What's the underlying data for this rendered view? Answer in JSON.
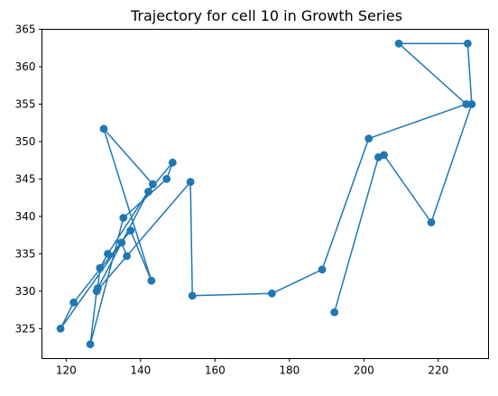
{
  "chart_data": {
    "type": "line",
    "title": "Trajectory for cell 10 in Growth Series",
    "xlabel": "",
    "ylabel": "",
    "xlim": [
      113.5,
      233.5
    ],
    "ylim": [
      321,
      365
    ],
    "x_ticks": [
      120,
      140,
      160,
      180,
      200,
      220
    ],
    "y_ticks": [
      325,
      330,
      335,
      340,
      345,
      350,
      355,
      360,
      365
    ],
    "grid": false,
    "legend": "none",
    "series": [
      {
        "color": "#1f77b4",
        "marker": "circle",
        "points": [
          [
            192.1,
            327.2
          ],
          [
            203.9,
            347.9
          ],
          [
            205.4,
            348.2
          ],
          [
            218.1,
            339.2
          ],
          [
            229.0,
            355.0
          ],
          [
            227.9,
            363.1
          ],
          [
            209.4,
            363.1
          ],
          [
            227.5,
            355.0
          ],
          [
            201.3,
            350.4
          ],
          [
            188.8,
            332.9
          ],
          [
            175.3,
            329.7
          ],
          [
            153.9,
            329.4
          ],
          [
            153.4,
            344.6
          ],
          [
            128.2,
            330.0
          ],
          [
            126.5,
            322.9
          ],
          [
            135.4,
            339.8
          ],
          [
            147.0,
            345.0
          ],
          [
            148.6,
            347.2
          ],
          [
            142.1,
            343.3
          ],
          [
            128.5,
            330.4
          ],
          [
            129.1,
            333.1
          ],
          [
            131.2,
            335.0
          ],
          [
            143.3,
            344.3
          ],
          [
            130.1,
            351.7
          ],
          [
            142.9,
            331.4
          ],
          [
            137.3,
            338.1
          ],
          [
            122.0,
            328.5
          ],
          [
            118.5,
            325.0
          ],
          [
            134.9,
            336.5
          ],
          [
            136.3,
            334.7
          ]
        ]
      }
    ]
  }
}
